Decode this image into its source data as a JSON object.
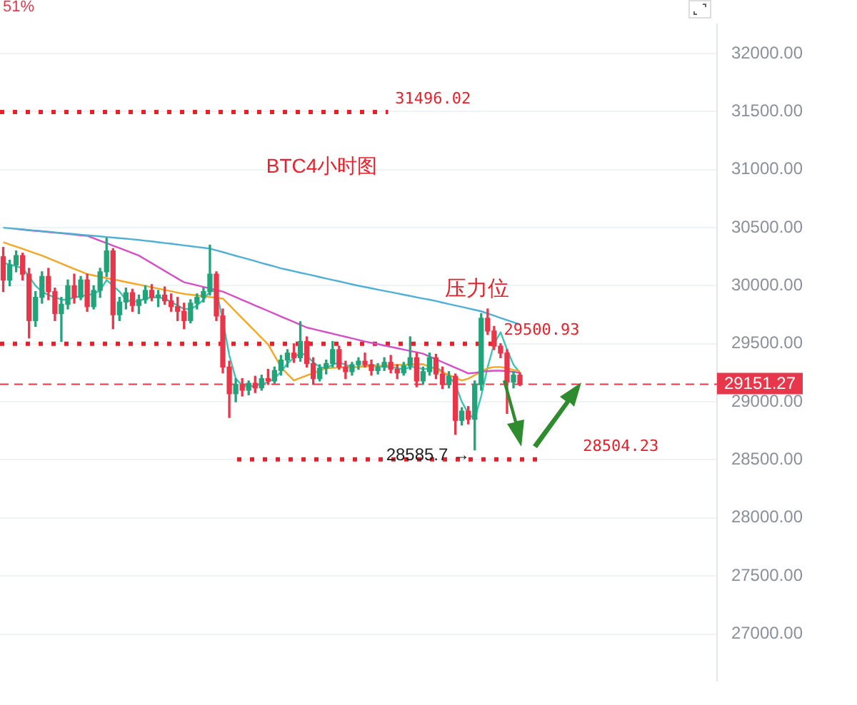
{
  "chart_data": {
    "type": "candlestick",
    "title": "BTC4小时图",
    "categories": [
      null,
      null,
      null,
      null,
      null,
      null,
      null,
      null,
      null,
      null,
      null,
      null,
      null,
      null,
      null,
      null,
      null,
      null,
      null,
      null,
      null,
      null,
      null,
      null,
      null,
      null,
      null,
      null,
      null,
      null,
      null,
      null,
      null,
      null,
      null,
      null,
      null,
      null,
      null,
      null,
      null,
      null,
      null,
      null,
      null,
      null,
      null,
      null,
      null,
      null,
      null,
      null,
      null,
      null,
      null,
      null,
      null,
      null,
      null,
      null,
      null,
      null,
      null,
      null,
      null,
      null,
      null,
      null,
      null,
      null,
      null,
      null,
      null,
      null,
      null,
      null,
      null,
      null,
      null,
      null,
      null,
      null,
      null,
      null,
      null,
      null,
      null,
      null,
      null,
      null,
      null,
      null,
      null,
      null,
      null,
      null,
      null,
      null,
      null,
      null,
      null,
      null,
      null,
      null,
      null,
      null,
      null,
      null,
      null,
      null,
      null
    ],
    "ohlc": [
      [
        30250,
        30330,
        29950,
        30050
      ],
      [
        30050,
        30220,
        30000,
        30180
      ],
      [
        30180,
        30300,
        30120,
        30260
      ],
      [
        30260,
        30280,
        30050,
        30100
      ],
      [
        30100,
        30150,
        29550,
        29700
      ],
      [
        29700,
        29950,
        29650,
        29900
      ],
      [
        29900,
        30120,
        29850,
        30080
      ],
      [
        30080,
        30150,
        29880,
        29950
      ],
      [
        29950,
        29980,
        29700,
        29760
      ],
      [
        29760,
        29900,
        29520,
        29840
      ],
      [
        29840,
        30050,
        29800,
        30000
      ],
      [
        30000,
        30100,
        29850,
        29900
      ],
      [
        29900,
        30080,
        29880,
        30050
      ],
      [
        30050,
        30100,
        29780,
        29820
      ],
      [
        29820,
        30000,
        29800,
        29960
      ],
      [
        29960,
        30150,
        29900,
        30120
      ],
      [
        30120,
        30410,
        30080,
        30300
      ],
      [
        30300,
        30320,
        29630,
        29750
      ],
      [
        29750,
        29900,
        29700,
        29860
      ],
      [
        29860,
        29980,
        29800,
        29940
      ],
      [
        29940,
        29970,
        29780,
        29830
      ],
      [
        29830,
        29920,
        29760,
        29880
      ],
      [
        29880,
        30000,
        29850,
        29960
      ],
      [
        29960,
        30010,
        29870,
        29900
      ],
      [
        29900,
        29960,
        29820,
        29920
      ],
      [
        29920,
        29990,
        29840,
        29870
      ],
      [
        29870,
        29930,
        29780,
        29820
      ],
      [
        29820,
        29900,
        29700,
        29780
      ],
      [
        29780,
        29850,
        29630,
        29700
      ],
      [
        29700,
        29880,
        29680,
        29850
      ],
      [
        29850,
        29930,
        29800,
        29900
      ],
      [
        29900,
        29980,
        29860,
        29950
      ],
      [
        29950,
        30350,
        29920,
        30100
      ],
      [
        30100,
        30120,
        29700,
        29740
      ],
      [
        29740,
        29800,
        29250,
        29300
      ],
      [
        29300,
        29350,
        28865,
        29070
      ],
      [
        29070,
        29200,
        29000,
        29150
      ],
      [
        29150,
        29200,
        29050,
        29100
      ],
      [
        29100,
        29180,
        29060,
        29160
      ],
      [
        29160,
        29220,
        29080,
        29120
      ],
      [
        29120,
        29230,
        29100,
        29200
      ],
      [
        29200,
        29280,
        29150,
        29180
      ],
      [
        29180,
        29300,
        29160,
        29270
      ],
      [
        29270,
        29400,
        29230,
        29360
      ],
      [
        29360,
        29450,
        29300,
        29420
      ],
      [
        29420,
        29500,
        29340,
        29380
      ],
      [
        29380,
        29690,
        29350,
        29520
      ],
      [
        29520,
        29560,
        29300,
        29330
      ],
      [
        29330,
        29380,
        29150,
        29200
      ],
      [
        29200,
        29320,
        29180,
        29290
      ],
      [
        29290,
        29360,
        29240,
        29330
      ],
      [
        29330,
        29520,
        29300,
        29450
      ],
      [
        29450,
        29480,
        29280,
        29300
      ],
      [
        29300,
        29350,
        29200,
        29260
      ],
      [
        29260,
        29340,
        29230,
        29320
      ],
      [
        29320,
        29380,
        29280,
        29350
      ],
      [
        29350,
        29420,
        29300,
        29320
      ],
      [
        29320,
        29360,
        29230,
        29270
      ],
      [
        29270,
        29330,
        29240,
        29300
      ],
      [
        29300,
        29380,
        29270,
        29340
      ],
      [
        29340,
        29400,
        29250,
        29280
      ],
      [
        29280,
        29320,
        29200,
        29250
      ],
      [
        29250,
        29340,
        29230,
        29310
      ],
      [
        29310,
        29560,
        29280,
        29380
      ],
      [
        29380,
        29420,
        29130,
        29180
      ],
      [
        29180,
        29300,
        29150,
        29260
      ],
      [
        29260,
        29420,
        29230,
        29380
      ],
      [
        29380,
        29410,
        29200,
        29240
      ],
      [
        29240,
        29300,
        29115,
        29150
      ],
      [
        29150,
        29260,
        29120,
        29220
      ],
      [
        29220,
        29240,
        28720,
        28840
      ],
      [
        28840,
        28950,
        28800,
        28920
      ],
      [
        28920,
        28960,
        28810,
        28850
      ],
      [
        28850,
        29180,
        28585.7,
        29150
      ],
      [
        29150,
        29760,
        29100,
        29720
      ],
      [
        29720,
        29800,
        29580,
        29610
      ],
      [
        29610,
        29650,
        29450,
        29480
      ],
      [
        29480,
        29500.93,
        29380,
        29420
      ],
      [
        29420,
        29450,
        28900,
        29170
      ],
      [
        29170,
        29260,
        29120,
        29230
      ],
      [
        29230,
        29250,
        29140,
        29151.27
      ],
      null,
      null,
      null,
      null,
      null,
      null,
      null,
      null,
      null,
      null,
      null,
      null,
      null,
      null,
      null,
      null,
      null,
      null,
      null,
      null,
      null,
      null,
      null,
      null,
      null,
      null,
      null,
      null,
      null,
      null
    ],
    "colors": [
      "#e8364a",
      "#22a37a",
      "#22a37a",
      "#e8364a",
      "#e8364a",
      "#22a37a",
      "#22a37a",
      "#e8364a",
      "#e8364a",
      "#22a37a",
      "#22a37a",
      "#e8364a",
      "#22a37a",
      "#e8364a",
      "#22a37a",
      "#22a37a",
      "#22a37a",
      "#e8364a",
      "#22a37a",
      "#22a37a",
      "#e8364a",
      "#22a37a",
      "#22a37a",
      "#e8364a",
      "#22a37a",
      "#e8364a",
      "#e8364a",
      "#e8364a",
      "#e8364a",
      "#22a37a",
      "#22a37a",
      "#22a37a",
      "#22a37a",
      "#e8364a",
      "#e8364a",
      "#e8364a",
      "#22a37a",
      "#e8364a",
      "#22a37a",
      "#e8364a",
      "#22a37a",
      "#e8364a",
      "#22a37a",
      "#22a37a",
      "#22a37a",
      "#e8364a",
      "#22a37a",
      "#e8364a",
      "#e8364a",
      "#22a37a",
      "#22a37a",
      "#22a37a",
      "#e8364a",
      "#e8364a",
      "#22a37a",
      "#22a37a",
      "#e8364a",
      "#e8364a",
      "#22a37a",
      "#22a37a",
      "#e8364a",
      "#e8364a",
      "#22a37a",
      "#22a37a",
      "#e8364a",
      "#22a37a",
      "#22a37a",
      "#e8364a",
      "#e8364a",
      "#22a37a",
      "#e8364a",
      "#22a37a",
      "#e8364a",
      "#22a37a",
      "#22a37a",
      "#e8364a",
      "#e8364a",
      "#e8364a",
      "#e8364a",
      "#22a37a",
      "#e8364a",
      null,
      null,
      null,
      null,
      null,
      null,
      null,
      null,
      null,
      null,
      null,
      null,
      null,
      null,
      null,
      null,
      null,
      null,
      null,
      null,
      null,
      null,
      null,
      null,
      null,
      null,
      null,
      null,
      null,
      null
    ],
    "series": [
      {
        "type": "line",
        "color": "#4fb0d6",
        "values": [
          30500,
          30495,
          30490,
          30485,
          30480,
          30475,
          30470,
          30465,
          30460,
          30455,
          30450,
          30445,
          30440,
          30435,
          30430,
          30425,
          30420,
          30415,
          30410,
          30405,
          30400,
          30395,
          30388,
          30382,
          30375,
          30368,
          30362,
          30355,
          30348,
          30341,
          30334,
          30327,
          30320,
          30305,
          30290,
          30274,
          30258,
          30243,
          30228,
          30212,
          30196,
          30181,
          30166,
          30150,
          30138,
          30125,
          30112,
          30100,
          30088,
          30075,
          30062,
          30050,
          30038,
          30025,
          30012,
          30000,
          29989,
          29978,
          29967,
          29956,
          29945,
          29934,
          29923,
          29912,
          29901,
          29890,
          29880,
          29868,
          29855,
          29842,
          29830,
          29818,
          29805,
          29792,
          29780,
          29761,
          29742,
          29723,
          29704,
          29685,
          29665,
          null,
          null,
          null,
          null,
          null,
          null,
          null,
          null,
          null,
          null,
          null,
          null,
          null,
          null,
          null,
          null,
          null,
          null,
          null,
          null,
          null,
          null,
          null,
          null,
          null,
          null,
          null,
          null,
          null,
          null
        ]
      },
      {
        "type": "line",
        "color": "#d64fc6",
        "values": [
          null,
          null,
          30489,
          30484,
          30478,
          30473,
          30468,
          30462,
          30457,
          30452,
          30446,
          30441,
          30435,
          30430,
          30409,
          30388,
          30367,
          30345,
          30324,
          30303,
          30282,
          30260,
          30227,
          30194,
          30161,
          30128,
          30095,
          30062,
          30030,
          30017,
          30004,
          29990,
          29977,
          29963,
          29950,
          29926,
          29902,
          29878,
          29854,
          29830,
          29807,
          29783,
          29759,
          29735,
          29711,
          29688,
          29664,
          29640,
          29627,
          29613,
          29600,
          29587,
          29573,
          29560,
          29547,
          29533,
          29520,
          29508,
          29497,
          29485,
          29473,
          29462,
          29450,
          29438,
          29427,
          29415,
          29391,
          29367,
          29342,
          29318,
          29294,
          29270,
          29245,
          29250,
          29258,
          29265,
          29268,
          29268,
          29265,
          29258,
          29250,
          null,
          null,
          null,
          null,
          null,
          null,
          null,
          null,
          null,
          null,
          null,
          null,
          null,
          null,
          null,
          null,
          null,
          null,
          null,
          null,
          null,
          null,
          null,
          null,
          null,
          null,
          null,
          null,
          null,
          null
        ]
      },
      {
        "type": "line",
        "color": "#f5a623",
        "values": [
          30375,
          30356,
          30337,
          30318,
          30298,
          30279,
          30260,
          30237,
          30214,
          30191,
          30168,
          30145,
          30123,
          30100,
          30089,
          30077,
          30066,
          30055,
          30044,
          30032,
          30021,
          30010,
          29999,
          29987,
          29976,
          29964,
          29953,
          29941,
          29930,
          29923,
          29917,
          29910,
          29903,
          29897,
          29890,
          29834,
          29777,
          29721,
          29664,
          29608,
          29551,
          29495,
          29398,
          29300,
          29240,
          29185,
          29206,
          29227,
          29248,
          29269,
          29290,
          29292,
          29295,
          29297,
          29300,
          29302,
          29305,
          29307,
          29310,
          29312,
          29315,
          29317,
          29320,
          29322,
          29324,
          29325,
          29302,
          29278,
          29255,
          29232,
          29208,
          29185,
          29200,
          29230,
          29260,
          29290,
          29300,
          29300,
          29290,
          29275,
          29265,
          null,
          null,
          null,
          null,
          null,
          null,
          null,
          null,
          null,
          null,
          null,
          null,
          null,
          null,
          null,
          null,
          null,
          null,
          null,
          null,
          null,
          null,
          null,
          null,
          null,
          null,
          null,
          null,
          null,
          null
        ]
      },
      {
        "type": "line",
        "color": "#3cc4b4",
        "values": [
          30200,
          30180,
          30170,
          30150,
          30080,
          30000,
          29950,
          29920,
          29900,
          29880,
          29880,
          29900,
          29910,
          29920,
          29930,
          29960,
          30050,
          30000,
          29950,
          29880,
          29860,
          29870,
          29890,
          29900,
          29900,
          29890,
          29860,
          29830,
          29800,
          29800,
          29830,
          29880,
          29950,
          29960,
          29700,
          29400,
          29200,
          29140,
          29130,
          29140,
          29150,
          29170,
          29200,
          29260,
          29330,
          29380,
          29420,
          29400,
          29340,
          29300,
          29290,
          29320,
          29340,
          29320,
          29300,
          29300,
          29310,
          29320,
          29310,
          29300,
          29300,
          29290,
          29280,
          29300,
          29300,
          29280,
          29290,
          29300,
          29260,
          29220,
          29150,
          29000,
          28900,
          28850,
          29050,
          29300,
          29500,
          29600,
          29450,
          29320,
          29250,
          null,
          null,
          null,
          null,
          null,
          null,
          null,
          null,
          null,
          null,
          null,
          null,
          null,
          null,
          null,
          null,
          null,
          null,
          null,
          null,
          null,
          null,
          null,
          null,
          null,
          null,
          null,
          null,
          null,
          null
        ]
      }
    ],
    "marker": "none",
    "ylim": [
      26600,
      32250
    ],
    "yticks": [
      {
        "value": 27000,
        "label": "27000.00"
      },
      {
        "value": 27500,
        "label": "27500.00"
      },
      {
        "value": 28000,
        "label": "28000.00"
      },
      {
        "value": 28500,
        "label": "28500.00"
      },
      {
        "value": 29000,
        "label": "29000.00"
      },
      {
        "value": 29500,
        "label": "29500.00"
      },
      {
        "value": 30000,
        "label": "30000.00"
      },
      {
        "value": 30500,
        "label": "30500.00"
      },
      {
        "value": 31000,
        "label": "31000.00"
      },
      {
        "value": 31500,
        "label": "31500.00"
      },
      {
        "value": 32000,
        "label": "32000.00"
      }
    ],
    "grid": "y",
    "tick_labels": "y",
    "ref_lines": [
      {
        "axis": "y",
        "value": 31496.02,
        "label": "31496.02",
        "color": "#e8202a",
        "line_style": "dotted"
      },
      {
        "axis": "y",
        "value": 29500.93,
        "label": "29500.93",
        "color": "#e8202a",
        "line_style": "dotted"
      },
      {
        "axis": "y",
        "value": 28504.23,
        "label": "28504.23",
        "color": "#e8202a",
        "line_style": "dotted"
      },
      {
        "axis": "y",
        "value": 29151.27,
        "label": "29151.27",
        "color": "#e8364a",
        "line_style": "dashed"
      }
    ],
    "annotations": [
      "51%",
      "压力位",
      "28585.7 →"
    ]
  }
}
